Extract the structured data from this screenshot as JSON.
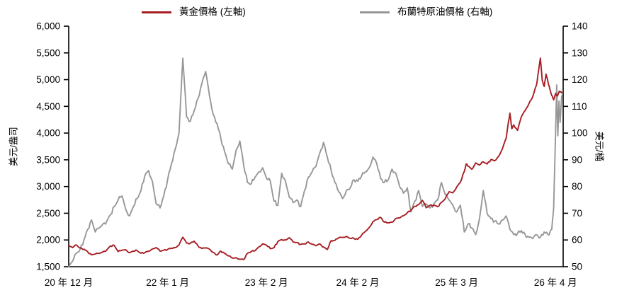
{
  "chart_data": {
    "type": "line",
    "title": "",
    "x_unit": "months since 2020-12",
    "x_range": [
      0,
      65
    ],
    "grid": "off",
    "legend_position": "top",
    "x_tick_labels": [
      {
        "label": "20 年 12 月",
        "m": 0
      },
      {
        "label": "22 年 1 月",
        "m": 13
      },
      {
        "label": "23 年 2 月",
        "m": 26
      },
      {
        "label": "24 年 2 月",
        "m": 38
      },
      {
        "label": "25 年 3 月",
        "m": 51
      },
      {
        "label": "26 年 4 月",
        "m": 64
      }
    ],
    "left_axis": {
      "title": "美元/盎司",
      "min": 1500,
      "max": 6000,
      "step": 500,
      "tick_labels": [
        "6,000",
        "5,500",
        "5,000",
        "4,500",
        "4,000",
        "3,500",
        "3,000",
        "2,500",
        "2,000",
        "1,500"
      ]
    },
    "right_axis": {
      "title": "美元/桶",
      "min": 50,
      "max": 140,
      "step": 10,
      "tick_labels": [
        "140",
        "130",
        "120",
        "110",
        "100",
        "90",
        "80",
        "70",
        "60",
        "50"
      ]
    },
    "series": [
      {
        "name": "黃金價格 (左軸)",
        "axis": "left",
        "color": "#A61E23",
        "points": [
          [
            0,
            1890
          ],
          [
            0.5,
            1858
          ],
          [
            1,
            1908
          ],
          [
            1.5,
            1850
          ],
          [
            2,
            1828
          ],
          [
            2.5,
            1778
          ],
          [
            3,
            1722
          ],
          [
            3.5,
            1738
          ],
          [
            4,
            1748
          ],
          [
            4.5,
            1778
          ],
          [
            5,
            1812
          ],
          [
            5.5,
            1888
          ],
          [
            6,
            1898
          ],
          [
            6.5,
            1782
          ],
          [
            7,
            1808
          ],
          [
            7.5,
            1818
          ],
          [
            8,
            1762
          ],
          [
            8.5,
            1792
          ],
          [
            9,
            1802
          ],
          [
            9.5,
            1752
          ],
          [
            10,
            1762
          ],
          [
            10.5,
            1792
          ],
          [
            11,
            1832
          ],
          [
            11.5,
            1858
          ],
          [
            12,
            1792
          ],
          [
            12.5,
            1808
          ],
          [
            13,
            1822
          ],
          [
            13.5,
            1848
          ],
          [
            14,
            1858
          ],
          [
            14.5,
            1908
          ],
          [
            15,
            2052
          ],
          [
            15.5,
            1942
          ],
          [
            16,
            1938
          ],
          [
            16.5,
            1978
          ],
          [
            17,
            1888
          ],
          [
            17.5,
            1842
          ],
          [
            18,
            1852
          ],
          [
            18.5,
            1828
          ],
          [
            19,
            1768
          ],
          [
            19.5,
            1718
          ],
          [
            20,
            1792
          ],
          [
            20.5,
            1748
          ],
          [
            21,
            1702
          ],
          [
            21.5,
            1662
          ],
          [
            22,
            1668
          ],
          [
            22.5,
            1642
          ],
          [
            23,
            1632
          ],
          [
            23.5,
            1752
          ],
          [
            24,
            1782
          ],
          [
            24.5,
            1802
          ],
          [
            25,
            1872
          ],
          [
            25.5,
            1928
          ],
          [
            26,
            1902
          ],
          [
            26.5,
            1838
          ],
          [
            27,
            1858
          ],
          [
            27.5,
            1972
          ],
          [
            28,
            2008
          ],
          [
            28.5,
            1998
          ],
          [
            29,
            2042
          ],
          [
            29.5,
            1962
          ],
          [
            30,
            1952
          ],
          [
            30.5,
            1918
          ],
          [
            31,
            1928
          ],
          [
            31.5,
            1962
          ],
          [
            32,
            1918
          ],
          [
            32.5,
            1892
          ],
          [
            33,
            1928
          ],
          [
            33.5,
            1868
          ],
          [
            34,
            1822
          ],
          [
            34.5,
            1988
          ],
          [
            35,
            1992
          ],
          [
            35.5,
            2042
          ],
          [
            36,
            2048
          ],
          [
            36.5,
            2068
          ],
          [
            37,
            2032
          ],
          [
            37.5,
            2028
          ],
          [
            38,
            2012
          ],
          [
            38.5,
            2088
          ],
          [
            39,
            2162
          ],
          [
            39.5,
            2232
          ],
          [
            40,
            2342
          ],
          [
            40.5,
            2382
          ],
          [
            41,
            2422
          ],
          [
            41.5,
            2332
          ],
          [
            42,
            2322
          ],
          [
            42.5,
            2332
          ],
          [
            43,
            2402
          ],
          [
            43.5,
            2412
          ],
          [
            44,
            2452
          ],
          [
            44.5,
            2508
          ],
          [
            45,
            2562
          ],
          [
            45.5,
            2632
          ],
          [
            46,
            2662
          ],
          [
            46.5,
            2742
          ],
          [
            47,
            2602
          ],
          [
            47.5,
            2652
          ],
          [
            48,
            2652
          ],
          [
            48.5,
            2622
          ],
          [
            49,
            2702
          ],
          [
            49.5,
            2772
          ],
          [
            50,
            2902
          ],
          [
            50.5,
            2882
          ],
          [
            51,
            2992
          ],
          [
            51.5,
            3082
          ],
          [
            52,
            3282
          ],
          [
            52.25,
            3422
          ],
          [
            52.5,
            3382
          ],
          [
            53,
            3322
          ],
          [
            53.5,
            3442
          ],
          [
            54,
            3402
          ],
          [
            54.5,
            3462
          ],
          [
            55,
            3422
          ],
          [
            55.5,
            3502
          ],
          [
            56,
            3482
          ],
          [
            56.5,
            3562
          ],
          [
            57,
            3702
          ],
          [
            57.5,
            3902
          ],
          [
            57.75,
            4152
          ],
          [
            58,
            4372
          ],
          [
            58.25,
            4082
          ],
          [
            58.5,
            4152
          ],
          [
            59,
            4052
          ],
          [
            59.5,
            4302
          ],
          [
            60,
            4422
          ],
          [
            60.5,
            4552
          ],
          [
            61,
            4682
          ],
          [
            61.5,
            4902
          ],
          [
            61.75,
            5152
          ],
          [
            62,
            5402
          ],
          [
            62.25,
            4982
          ],
          [
            62.5,
            4872
          ],
          [
            62.75,
            5102
          ],
          [
            63,
            4962
          ],
          [
            63.25,
            4822
          ],
          [
            63.5,
            4702
          ],
          [
            63.75,
            4622
          ],
          [
            64,
            4742
          ],
          [
            64.25,
            4692
          ],
          [
            64.5,
            4782
          ],
          [
            64.8,
            4752
          ]
        ]
      },
      {
        "name": "布蘭特原油價格 (右軸)",
        "axis": "right",
        "color": "#979797",
        "points": [
          [
            0,
            50
          ],
          [
            0.5,
            52
          ],
          [
            1,
            55
          ],
          [
            1.5,
            56.5
          ],
          [
            2,
            60
          ],
          [
            2.5,
            64
          ],
          [
            3,
            67.5
          ],
          [
            3.5,
            63
          ],
          [
            4,
            64.5
          ],
          [
            4.5,
            66
          ],
          [
            5,
            67
          ],
          [
            5.5,
            69.5
          ],
          [
            6,
            72.5
          ],
          [
            6.5,
            75
          ],
          [
            7,
            76.5
          ],
          [
            7.5,
            71.5
          ],
          [
            8,
            69
          ],
          [
            8.5,
            72.5
          ],
          [
            9,
            75.5
          ],
          [
            9.5,
            78.5
          ],
          [
            10,
            84
          ],
          [
            10.5,
            86
          ],
          [
            11,
            82
          ],
          [
            11.5,
            73.5
          ],
          [
            12,
            72
          ],
          [
            12.5,
            76.5
          ],
          [
            13,
            82.5
          ],
          [
            13.5,
            88.5
          ],
          [
            14,
            94
          ],
          [
            14.5,
            100
          ],
          [
            15,
            128
          ],
          [
            15.5,
            106
          ],
          [
            16,
            104.5
          ],
          [
            16.5,
            108.5
          ],
          [
            17,
            113
          ],
          [
            17.5,
            118.5
          ],
          [
            18,
            123
          ],
          [
            18.5,
            114
          ],
          [
            19,
            107
          ],
          [
            19.5,
            103.5
          ],
          [
            20,
            98
          ],
          [
            20.5,
            93
          ],
          [
            21,
            88.5
          ],
          [
            21.5,
            86.5
          ],
          [
            22,
            93.5
          ],
          [
            22.5,
            97
          ],
          [
            23,
            88
          ],
          [
            23.5,
            81.5
          ],
          [
            24,
            81
          ],
          [
            24.5,
            83.5
          ],
          [
            25,
            85.5
          ],
          [
            25.5,
            87
          ],
          [
            26,
            83
          ],
          [
            26.5,
            82
          ],
          [
            27,
            74.5
          ],
          [
            27.5,
            73
          ],
          [
            28,
            85
          ],
          [
            28.5,
            82
          ],
          [
            29,
            76
          ],
          [
            29.5,
            74
          ],
          [
            30,
            75
          ],
          [
            30.5,
            72.5
          ],
          [
            31,
            78.5
          ],
          [
            31.5,
            83.5
          ],
          [
            32,
            85.5
          ],
          [
            32.5,
            87.5
          ],
          [
            33,
            92.5
          ],
          [
            33.5,
            96.5
          ],
          [
            34,
            91
          ],
          [
            34.5,
            86
          ],
          [
            35,
            81.5
          ],
          [
            35.5,
            78
          ],
          [
            36,
            75.5
          ],
          [
            36.5,
            78.5
          ],
          [
            37,
            79.5
          ],
          [
            37.5,
            82.5
          ],
          [
            38,
            82
          ],
          [
            38.5,
            84
          ],
          [
            39,
            85.5
          ],
          [
            39.5,
            87
          ],
          [
            40,
            91
          ],
          [
            40.5,
            88.5
          ],
          [
            41,
            83
          ],
          [
            41.5,
            81.5
          ],
          [
            42,
            82.5
          ],
          [
            42.5,
            86.5
          ],
          [
            43,
            85
          ],
          [
            43.5,
            80
          ],
          [
            44,
            77.5
          ],
          [
            44.5,
            79.5
          ],
          [
            45,
            70.5
          ],
          [
            45.5,
            74.5
          ],
          [
            46,
            78.5
          ],
          [
            46.5,
            72.5
          ],
          [
            47,
            73.5
          ],
          [
            47.5,
            72
          ],
          [
            48,
            73.5
          ],
          [
            48.5,
            75
          ],
          [
            49,
            81.5
          ],
          [
            49.5,
            77
          ],
          [
            50,
            75
          ],
          [
            50.5,
            73
          ],
          [
            51,
            70.5
          ],
          [
            51.5,
            73
          ],
          [
            52,
            63
          ],
          [
            52.5,
            66
          ],
          [
            53,
            64.5
          ],
          [
            53.5,
            62
          ],
          [
            54,
            68
          ],
          [
            54.5,
            78.5
          ],
          [
            55,
            70
          ],
          [
            55.5,
            68
          ],
          [
            56,
            67
          ],
          [
            56.5,
            66
          ],
          [
            57,
            67.5
          ],
          [
            57.5,
            69
          ],
          [
            58,
            64
          ],
          [
            58.5,
            62
          ],
          [
            59,
            62.5
          ],
          [
            59.5,
            63.5
          ],
          [
            60,
            62
          ],
          [
            60.5,
            61
          ],
          [
            61,
            60.5
          ],
          [
            61.5,
            62
          ],
          [
            62,
            61
          ],
          [
            62.5,
            63
          ],
          [
            63,
            62
          ],
          [
            63.5,
            64
          ],
          [
            63.75,
            72
          ],
          [
            64,
            100
          ],
          [
            64.15,
            118
          ],
          [
            64.3,
            99
          ],
          [
            64.45,
            112
          ],
          [
            64.6,
            104
          ],
          [
            64.8,
            114
          ]
        ]
      }
    ]
  }
}
